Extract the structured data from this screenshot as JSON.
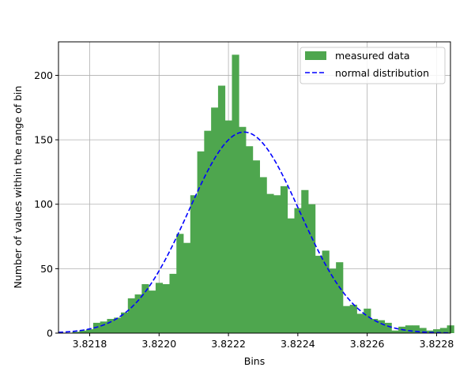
{
  "chart_data": {
    "type": "bar",
    "xlabel": "Bins",
    "ylabel": "Number of values within the range of bin",
    "xlim": [
      3.82171,
      3.82284
    ],
    "ylim": [
      0,
      226
    ],
    "grid": true,
    "legend_placement": "top-right",
    "x_ticks": [
      "3.8218",
      "3.8220",
      "3.8222",
      "3.8224",
      "3.8226",
      "3.8228"
    ],
    "x_tick_values": [
      3.8218,
      3.822,
      3.8222,
      3.8224,
      3.8226,
      3.8228
    ],
    "y_ticks": [
      "0",
      "50",
      "100",
      "150",
      "200"
    ],
    "y_tick_values": [
      0,
      50,
      100,
      150,
      200
    ],
    "series": [
      {
        "name": "measured data",
        "kind": "histogram",
        "color": "#4ea64e",
        "bin_start": 3.82171,
        "bin_width": 2e-05,
        "counts": [
          0,
          0,
          1,
          2,
          3,
          8,
          9,
          11,
          12,
          16,
          27,
          30,
          38,
          33,
          39,
          38,
          46,
          77,
          70,
          107,
          141,
          157,
          175,
          192,
          165,
          216,
          160,
          145,
          134,
          121,
          108,
          107,
          114,
          89,
          97,
          111,
          100,
          60,
          64,
          50,
          55,
          21,
          22,
          15,
          19,
          11,
          10,
          8,
          2,
          5,
          6,
          6,
          4,
          2,
          3,
          4,
          6
        ]
      },
      {
        "name": "normal distribution",
        "kind": "line",
        "color": "#0000ff",
        "style": "dashed",
        "mean": 3.822245,
        "std": 0.00016,
        "peak": 156
      }
    ]
  }
}
